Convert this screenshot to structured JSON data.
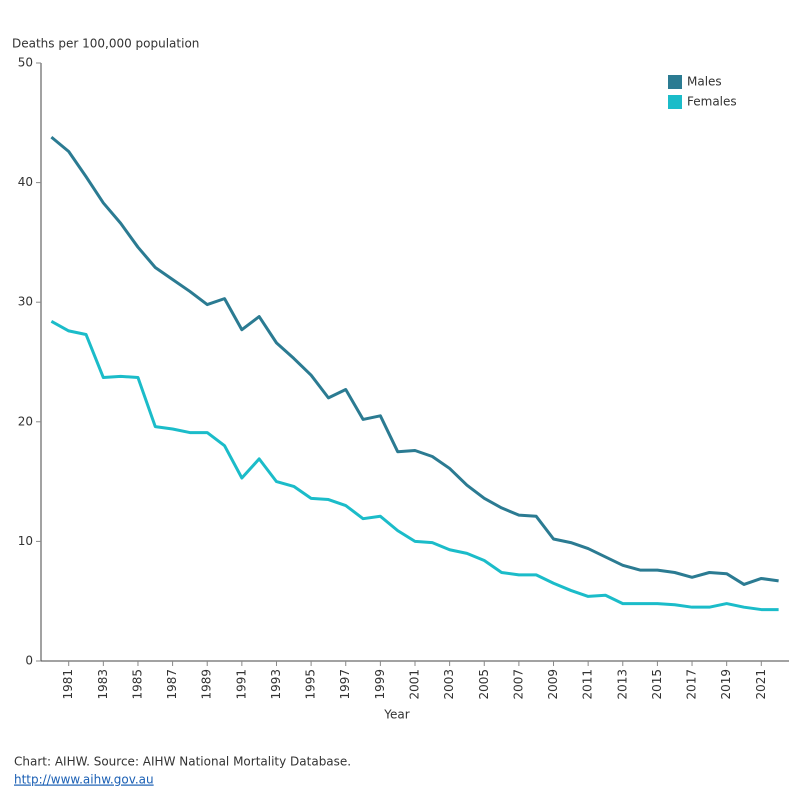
{
  "chart_data": {
    "type": "line",
    "y_label": "Deaths per 100,000 population",
    "x_label": "Year",
    "x": [
      1980,
      1981,
      1982,
      1983,
      1984,
      1985,
      1986,
      1987,
      1988,
      1989,
      1990,
      1991,
      1992,
      1993,
      1994,
      1995,
      1996,
      1997,
      1998,
      1999,
      2000,
      2001,
      2002,
      2003,
      2004,
      2005,
      2006,
      2007,
      2008,
      2009,
      2010,
      2011,
      2012,
      2013,
      2014,
      2015,
      2016,
      2017,
      2018,
      2019,
      2020,
      2021,
      2022
    ],
    "series": [
      {
        "name": "Males",
        "color": "#2b7b92",
        "values": [
          43.8,
          42.6,
          40.5,
          38.3,
          36.6,
          34.6,
          32.9,
          31.9,
          30.9,
          29.8,
          30.3,
          27.7,
          28.8,
          26.6,
          25.3,
          23.9,
          22.0,
          22.7,
          20.2,
          20.5,
          17.5,
          17.6,
          17.1,
          16.1,
          14.7,
          13.6,
          12.8,
          12.2,
          12.1,
          10.2,
          9.9,
          9.4,
          8.7,
          8.0,
          7.6,
          7.6,
          7.4,
          7.0,
          7.4,
          7.3,
          6.4,
          6.9,
          6.7
        ]
      },
      {
        "name": "Females",
        "color": "#1bbcc9",
        "values": [
          28.4,
          27.6,
          27.3,
          23.7,
          23.8,
          23.7,
          19.6,
          19.4,
          19.1,
          19.1,
          18.0,
          15.3,
          16.9,
          15.0,
          14.6,
          13.6,
          13.5,
          13.0,
          11.9,
          12.1,
          10.9,
          10.0,
          9.9,
          9.3,
          9.0,
          8.4,
          7.4,
          7.2,
          7.2,
          6.5,
          5.9,
          5.4,
          5.5,
          4.8,
          4.8,
          4.8,
          4.7,
          4.5,
          4.5,
          4.8,
          4.5,
          4.3,
          4.3
        ]
      }
    ],
    "xlim": [
      1979.4,
      2022.6
    ],
    "xticks": [
      1981,
      1983,
      1985,
      1987,
      1989,
      1991,
      1993,
      1995,
      1997,
      1999,
      2001,
      2003,
      2005,
      2007,
      2009,
      2011,
      2013,
      2015,
      2017,
      2019,
      2021
    ],
    "ylim": [
      0,
      50
    ],
    "yticks": [
      0,
      10,
      20,
      30,
      40,
      50
    ],
    "grid": false,
    "legend": "top-right",
    "footer": {
      "source": "Chart: AIHW. Source: AIHW National Mortality Database.",
      "link": "http://www.aihw.gov.au"
    }
  }
}
